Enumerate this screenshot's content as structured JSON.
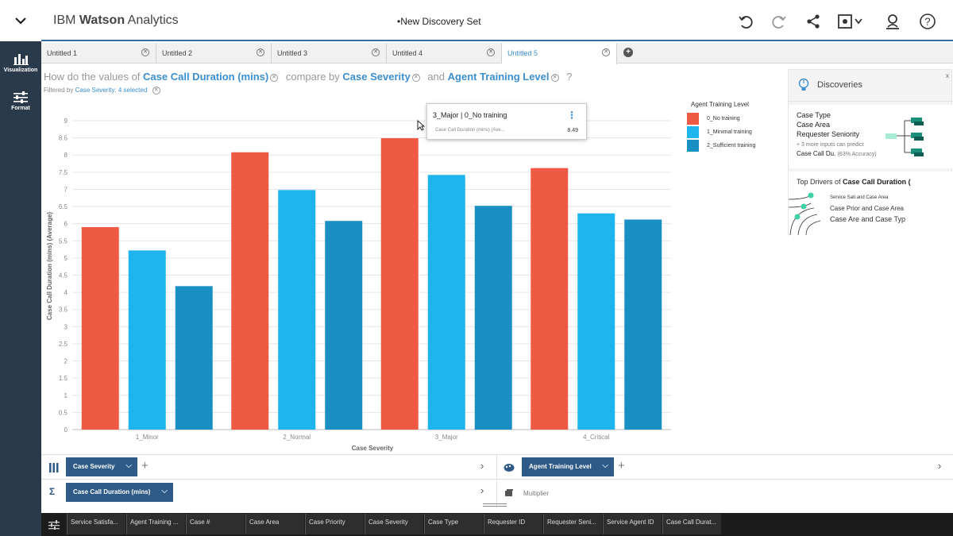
{
  "app": {
    "brand_prefix": "IBM",
    "brand_name": "Watson",
    "brand_suffix": "Analytics",
    "doc_title": "•New Discovery Set"
  },
  "rail": {
    "items": [
      {
        "label": "Visualization",
        "icon": "bar-chart-icon"
      },
      {
        "label": "Format",
        "icon": "sliders-icon"
      }
    ]
  },
  "tabs": [
    {
      "label": "Untitled 1",
      "active": false
    },
    {
      "label": "Untitled 2",
      "active": false
    },
    {
      "label": "Untitled 3",
      "active": false
    },
    {
      "label": "Untitled 4",
      "active": false
    },
    {
      "label": "Untitled 5",
      "active": true
    }
  ],
  "question": {
    "part1": "How do the values of",
    "term1": "Case Call Duration (mins)",
    "part2": "compare by",
    "term2": "Case Severity",
    "part3": "and",
    "term3": "Agent Training Level",
    "part4": "?",
    "filter_prefix": "Filtered by",
    "filter_value": "Case Severity: 4 selected"
  },
  "chart_data": {
    "type": "bar",
    "xlabel": "Case Severity",
    "ylabel": "Case Call Duration (mins) (Average)",
    "ylim": [
      0,
      9
    ],
    "yticks": [
      "0",
      "0.5",
      "1",
      "1.5",
      "2",
      "2.5",
      "3",
      "3.5",
      "4",
      "4.5",
      "5",
      "5.5",
      "6",
      "6.5",
      "7",
      "7.5",
      "8",
      "8.5",
      "9"
    ],
    "grid": true,
    "legend_title": "Agent Training Level",
    "legend_position": "right",
    "categories": [
      "1_Minor",
      "2_Normal",
      "3_Major",
      "4_Critical"
    ],
    "series": [
      {
        "name": "0_No training",
        "color": "#ee5a44",
        "values": [
          5.9,
          8.08,
          8.49,
          7.62
        ]
      },
      {
        "name": "1_Minimal training",
        "color": "#1eb4ee",
        "values": [
          5.22,
          6.98,
          7.42,
          6.3
        ]
      },
      {
        "name": "2_Sufficient training",
        "color": "#1a8fc4",
        "values": [
          4.18,
          6.08,
          6.52,
          6.12
        ]
      }
    ]
  },
  "tooltip": {
    "title": "3_Major | 0_No training",
    "label": "Case Call Duration (mins) (Ave...",
    "value": "8.49"
  },
  "discoveries": {
    "title": "Discoveries",
    "close": "x",
    "card1": {
      "lines": [
        "Case Type",
        "Case Area",
        "Requester Seniority"
      ],
      "more": "+ 3 more inputs can predict",
      "target": "Case Call Du.",
      "accuracy": "(63% Accuracy)"
    },
    "card2": {
      "title_prefix": "Top Drivers of",
      "title_target": "Case Call Duration (",
      "drivers": [
        {
          "a": "Service Sati",
          "and": "and",
          "b": "Case Area"
        },
        {
          "a": "Case Prior",
          "and": "and",
          "b": "Case Area"
        },
        {
          "a": "Case Are",
          "and": "and",
          "b": "Case Typ"
        }
      ]
    }
  },
  "zones": {
    "columns_pill": "Case Severity",
    "color_pill": "Agent Training Level",
    "value_pill": "Case Call Duration (mins)",
    "multiplier": "Multiplier",
    "sigma": "Σ"
  },
  "columns": [
    "Service Satisfa...",
    "Agent Training ...",
    "Case #",
    "Case Area",
    "Case Priority",
    "Case Severity",
    "Case Type",
    "Requester ID",
    "Requester Seni...",
    "Service Agent ID",
    "Case Call Durat..."
  ],
  "colors": {
    "accent": "#3b8fd0",
    "pill": "#2e5a87",
    "rail": "#2a3a4a"
  }
}
